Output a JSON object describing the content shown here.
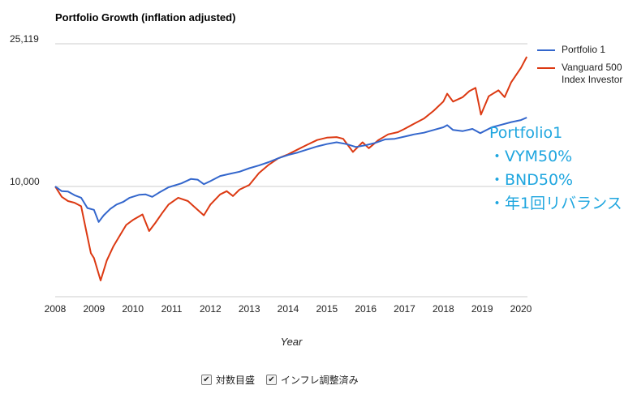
{
  "chart_data": {
    "type": "line",
    "title": "Portfolio Growth (inflation adjusted)",
    "xlabel": "Year",
    "ylabel": "",
    "yscale": "log",
    "ylim": [
      5000,
      25119
    ],
    "y_ticks": [
      {
        "value": 25119,
        "label": "25,119"
      },
      {
        "value": 10000,
        "label": "10,000"
      }
    ],
    "x_ticks": [
      "2008",
      "2009",
      "2010",
      "2011",
      "2012",
      "2013",
      "2014",
      "2015",
      "2016",
      "2017",
      "2018",
      "2019",
      "2020"
    ],
    "xlim": [
      2008.0,
      2020.25
    ],
    "grid": true,
    "legend_position": "right",
    "series": [
      {
        "name": "Portfolio 1",
        "color": "#3366cc",
        "points": [
          [
            2008.0,
            10000
          ],
          [
            2008.17,
            9700
          ],
          [
            2008.33,
            9680
          ],
          [
            2008.5,
            9450
          ],
          [
            2008.67,
            9300
          ],
          [
            2008.83,
            8700
          ],
          [
            2009.0,
            8600
          ],
          [
            2009.12,
            7950
          ],
          [
            2009.25,
            8300
          ],
          [
            2009.42,
            8650
          ],
          [
            2009.58,
            8900
          ],
          [
            2009.75,
            9050
          ],
          [
            2009.92,
            9300
          ],
          [
            2010.17,
            9480
          ],
          [
            2010.33,
            9500
          ],
          [
            2010.5,
            9350
          ],
          [
            2010.67,
            9600
          ],
          [
            2010.92,
            9950
          ],
          [
            2011.25,
            10200
          ],
          [
            2011.5,
            10500
          ],
          [
            2011.67,
            10450
          ],
          [
            2011.83,
            10150
          ],
          [
            2012.0,
            10350
          ],
          [
            2012.25,
            10700
          ],
          [
            2012.5,
            10850
          ],
          [
            2012.75,
            11000
          ],
          [
            2013.0,
            11250
          ],
          [
            2013.25,
            11450
          ],
          [
            2013.5,
            11700
          ],
          [
            2013.75,
            12000
          ],
          [
            2014.0,
            12250
          ],
          [
            2014.25,
            12450
          ],
          [
            2014.5,
            12700
          ],
          [
            2014.75,
            12950
          ],
          [
            2015.0,
            13150
          ],
          [
            2015.25,
            13300
          ],
          [
            2015.5,
            13150
          ],
          [
            2015.75,
            12900
          ],
          [
            2016.0,
            13050
          ],
          [
            2016.25,
            13250
          ],
          [
            2016.5,
            13550
          ],
          [
            2016.75,
            13600
          ],
          [
            2017.0,
            13800
          ],
          [
            2017.25,
            14000
          ],
          [
            2017.5,
            14150
          ],
          [
            2017.75,
            14400
          ],
          [
            2018.0,
            14650
          ],
          [
            2018.1,
            14850
          ],
          [
            2018.25,
            14400
          ],
          [
            2018.5,
            14300
          ],
          [
            2018.75,
            14500
          ],
          [
            2018.95,
            14100
          ],
          [
            2019.25,
            14650
          ],
          [
            2019.5,
            14900
          ],
          [
            2019.75,
            15150
          ],
          [
            2020.0,
            15350
          ],
          [
            2020.15,
            15600
          ]
        ]
      },
      {
        "name": "Vanguard 500 Index Investor",
        "color": "#dc3912",
        "points": [
          [
            2008.0,
            10000
          ],
          [
            2008.17,
            9350
          ],
          [
            2008.33,
            9100
          ],
          [
            2008.5,
            9000
          ],
          [
            2008.67,
            8800
          ],
          [
            2008.8,
            7500
          ],
          [
            2008.92,
            6500
          ],
          [
            2009.0,
            6300
          ],
          [
            2009.17,
            5450
          ],
          [
            2009.33,
            6200
          ],
          [
            2009.5,
            6800
          ],
          [
            2009.67,
            7300
          ],
          [
            2009.83,
            7800
          ],
          [
            2010.0,
            8050
          ],
          [
            2010.25,
            8350
          ],
          [
            2010.42,
            7500
          ],
          [
            2010.58,
            7900
          ],
          [
            2010.75,
            8400
          ],
          [
            2010.92,
            8900
          ],
          [
            2011.17,
            9300
          ],
          [
            2011.42,
            9100
          ],
          [
            2011.67,
            8600
          ],
          [
            2011.83,
            8300
          ],
          [
            2012.0,
            8900
          ],
          [
            2012.25,
            9500
          ],
          [
            2012.42,
            9700
          ],
          [
            2012.58,
            9400
          ],
          [
            2012.75,
            9800
          ],
          [
            2013.0,
            10100
          ],
          [
            2013.25,
            10900
          ],
          [
            2013.5,
            11500
          ],
          [
            2013.75,
            12000
          ],
          [
            2014.0,
            12300
          ],
          [
            2014.25,
            12700
          ],
          [
            2014.5,
            13100
          ],
          [
            2014.75,
            13500
          ],
          [
            2015.0,
            13700
          ],
          [
            2015.25,
            13750
          ],
          [
            2015.42,
            13600
          ],
          [
            2015.67,
            12500
          ],
          [
            2015.92,
            13300
          ],
          [
            2016.08,
            12800
          ],
          [
            2016.33,
            13500
          ],
          [
            2016.58,
            14000
          ],
          [
            2016.83,
            14200
          ],
          [
            2017.0,
            14500
          ],
          [
            2017.25,
            15000
          ],
          [
            2017.5,
            15500
          ],
          [
            2017.75,
            16300
          ],
          [
            2018.0,
            17300
          ],
          [
            2018.1,
            18200
          ],
          [
            2018.25,
            17300
          ],
          [
            2018.5,
            17800
          ],
          [
            2018.67,
            18500
          ],
          [
            2018.83,
            18900
          ],
          [
            2018.97,
            15900
          ],
          [
            2019.17,
            17900
          ],
          [
            2019.42,
            18600
          ],
          [
            2019.58,
            17800
          ],
          [
            2019.75,
            19600
          ],
          [
            2020.0,
            21500
          ],
          [
            2020.15,
            23100
          ]
        ]
      }
    ]
  },
  "annotation": {
    "lines": [
      "Portfolio1",
      "・VYM50%",
      "・BND50%",
      "・年1回リバランス"
    ],
    "color": "#1fa6df"
  },
  "controls": {
    "log_scale": {
      "label": "対数目盛",
      "checked": true
    },
    "inflation_adjusted": {
      "label": "インフレ調整済み",
      "checked": true
    }
  }
}
